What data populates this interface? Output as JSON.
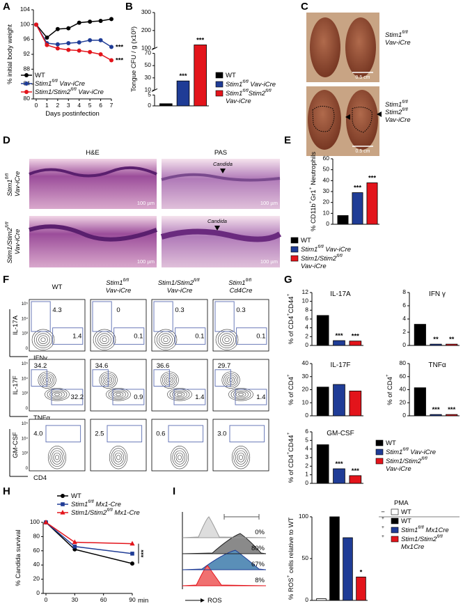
{
  "panel_labels": [
    "A",
    "B",
    "C",
    "D",
    "E",
    "F",
    "G",
    "H",
    "I"
  ],
  "chart_data": [
    {
      "type": "line",
      "x": [
        0,
        1,
        2,
        3,
        4,
        5,
        6,
        7
      ],
      "xlim": [
        0,
        7
      ],
      "xticks": [
        0,
        1,
        2,
        3,
        4,
        5,
        6,
        7
      ],
      "ylim": [
        80,
        104
      ],
      "yticks": [
        80,
        84,
        88,
        92,
        96,
        100,
        104
      ],
      "xlabel": "Days postinfection",
      "ylabel": "% initial body weight",
      "series": [
        {
          "name": "WT",
          "color": "#000000",
          "marker": "circle",
          "values": [
            100,
            96.5,
            98.8,
            99,
            100.5,
            100.8,
            101,
            101.5
          ]
        },
        {
          "name": "Stim1fl/fl Vav-iCre",
          "color": "#1f3c96",
          "marker": "circle",
          "values": [
            100,
            95,
            94.7,
            95,
            95.2,
            95.8,
            95.8,
            94
          ],
          "annotation": "***"
        },
        {
          "name": "Stim1/Stim2fl/fl Vav-iCre",
          "color": "#e3141b",
          "marker": "circle",
          "values": [
            100,
            94.5,
            93.6,
            93.2,
            93,
            92.6,
            92,
            90.4
          ],
          "annotation": "***"
        }
      ]
    },
    {
      "type": "bar",
      "ylabel": "Tongue CFU / g (x10³)",
      "categories": [
        "WT",
        "Stim1fl/fl Vav-iCre",
        "Stim1fl/flStim2fl/fl Vav-iCre"
      ],
      "colors": [
        "#000000",
        "#1f3c96",
        "#e3141b"
      ],
      "values": [
        1,
        25,
        120
      ],
      "annotations": [
        null,
        "***",
        "***"
      ],
      "ylim": [
        0,
        300
      ],
      "yticks": [
        0,
        5,
        10,
        30,
        50,
        70,
        100,
        200,
        300
      ],
      "y_segments": [
        [
          0,
          5
        ],
        [
          10,
          70
        ],
        [
          100,
          300
        ]
      ]
    },
    {
      "type": "bar",
      "ylabel": "% CD11b+Gr1+ Neutrophils",
      "categories": [
        "WT",
        "Stim1fl/fl Vav-iCre",
        "Stim1/Stim2fl/fl Vav-iCre"
      ],
      "colors": [
        "#000000",
        "#1f3c96",
        "#e3141b"
      ],
      "values": [
        8,
        29,
        38
      ],
      "annotations": [
        null,
        "***",
        "***"
      ],
      "ylim": [
        0,
        60
      ],
      "yticks": [
        0,
        10,
        20,
        30,
        40,
        50,
        60
      ]
    },
    {
      "type": "bar",
      "title": "IL-17A",
      "ylabel": "% of CD4+CD44+",
      "categories": [
        "WT",
        "Stim1fl/fl Vav-iCre",
        "Stim1/Stim2fl/fl Vav-iCre"
      ],
      "colors": [
        "#000000",
        "#1f3c96",
        "#e3141b"
      ],
      "values": [
        6.8,
        1.1,
        1.0
      ],
      "annotations": [
        null,
        "***",
        "***"
      ],
      "ylim": [
        0,
        12
      ],
      "yticks": [
        0,
        2,
        4,
        6,
        8,
        10,
        12
      ]
    },
    {
      "type": "bar",
      "title": "IFN γ",
      "colors": [
        "#000000",
        "#1f3c96",
        "#e3141b"
      ],
      "values": [
        3.2,
        0.2,
        0.2
      ],
      "annotations": [
        null,
        "**",
        "**"
      ],
      "ylim": [
        0,
        8
      ],
      "yticks": [
        0,
        2,
        4,
        6,
        8
      ]
    },
    {
      "type": "bar",
      "title": "IL-17F",
      "ylabel": "% of CD4+",
      "colors": [
        "#000000",
        "#1f3c96",
        "#e3141b"
      ],
      "values": [
        22,
        24,
        19
      ],
      "ylim": [
        0,
        40
      ],
      "yticks": [
        0,
        10,
        20,
        30,
        40
      ]
    },
    {
      "type": "bar",
      "title": "TNFα",
      "ylabel": "% of CD4+",
      "colors": [
        "#000000",
        "#1f3c96",
        "#e3141b"
      ],
      "values": [
        43,
        2,
        2
      ],
      "annotations": [
        null,
        "***",
        "***"
      ],
      "ylim": [
        0,
        80
      ],
      "yticks": [
        0,
        20,
        40,
        60,
        80
      ]
    },
    {
      "type": "bar",
      "title": "GM-CSF",
      "ylabel": "% of CD4+CD44+",
      "colors": [
        "#000000",
        "#1f3c96",
        "#e3141b"
      ],
      "values": [
        4.5,
        1.7,
        0.9
      ],
      "annotations": [
        null,
        "***",
        "***"
      ],
      "ylim": [
        0,
        6
      ],
      "yticks": [
        0,
        1,
        2,
        3,
        4,
        5,
        6
      ]
    },
    {
      "type": "line",
      "x": [
        0,
        30,
        90
      ],
      "xlim": [
        0,
        90
      ],
      "xticks": [
        0,
        30,
        60,
        90
      ],
      "xlabel": "min",
      "ylabel": "% Candida survival",
      "ylim": [
        0,
        100
      ],
      "yticks": [
        0,
        20,
        40,
        60,
        80,
        100
      ],
      "annotation": "***",
      "series": [
        {
          "name": "WT",
          "color": "#000000",
          "marker": "circle",
          "values": [
            100,
            62,
            42
          ]
        },
        {
          "name": "Stim1fl/fl Mx1-Cre",
          "color": "#1f3c96",
          "marker": "square",
          "values": [
            100,
            66,
            56
          ]
        },
        {
          "name": "Stim1/Stim2fl/fl Mx1-Cre",
          "color": "#e3141b",
          "marker": "triangle",
          "values": [
            100,
            72,
            70
          ]
        }
      ]
    },
    {
      "type": "bar",
      "ylabel": "% ROS+ cells relative to WT",
      "legend_title": "PMA",
      "pma": [
        "−",
        "+",
        "+",
        "+"
      ],
      "categories": [
        "WT",
        "WT",
        "Stim1fl/fl Mx1Cre",
        "Stim1/Stim2fl/fl Mx1Cre"
      ],
      "colors": [
        "#ffffff",
        "#000000",
        "#1f3c96",
        "#e3141b"
      ],
      "values": [
        2,
        100,
        75,
        28
      ],
      "annotations": [
        null,
        null,
        null,
        "*"
      ],
      "ylim": [
        0,
        100
      ],
      "yticks": [
        0,
        50,
        100
      ]
    }
  ],
  "photos": {
    "labels": [
      "Stim1fl/fl Vav-iCre",
      "Stim1fl/fl Stim2fl/fl Vav-iCre"
    ],
    "scale_bars": [
      "0.5 cm",
      "0.5 cm"
    ]
  },
  "histology": {
    "columns": [
      "H&E",
      "PAS"
    ],
    "rows": [
      "Stim1fl/fl Vav-iCre",
      "Stim1/Stim2fl/fl Vav-iCre"
    ],
    "scale_bars": [
      "100 µm",
      "100 µm",
      "100 µm",
      "100 µm"
    ],
    "annotations": [
      "Candida",
      "Candida"
    ]
  },
  "flow": {
    "columns": [
      "WT",
      "Stim1fl/fl Vav-iCre",
      "Stim1/Stim2fl/fl Vav-iCre",
      "Stim1fl/fl Cd4Cre"
    ],
    "axis_ticks": [
      "10⁵",
      "10⁴",
      "10³",
      "0"
    ],
    "rows": [
      {
        "y_label": "IL-17A",
        "x_label": "IFNγ",
        "gates": [
          [
            "4.3",
            "1.4"
          ],
          [
            "0",
            "0.1"
          ],
          [
            "0.3",
            "0.1"
          ],
          [
            "0.3",
            "0.1"
          ]
        ]
      },
      {
        "y_label": "IL-17F",
        "x_label": "TNFα",
        "gates": [
          [
            "34.2",
            "32.2"
          ],
          [
            "34.6",
            "0.9"
          ],
          [
            "36.6",
            "1.4"
          ],
          [
            "29.7",
            "1.4"
          ]
        ]
      },
      {
        "y_label": "GM-CSF",
        "x_label": "CD4",
        "gates": [
          [
            "4.0"
          ],
          [
            "2.5"
          ],
          [
            "0.6"
          ],
          [
            "3.0"
          ]
        ]
      }
    ]
  },
  "ros_histogram": {
    "percentages": [
      "0%",
      "80%",
      "67%",
      "8%"
    ],
    "x_label": "ROS"
  }
}
